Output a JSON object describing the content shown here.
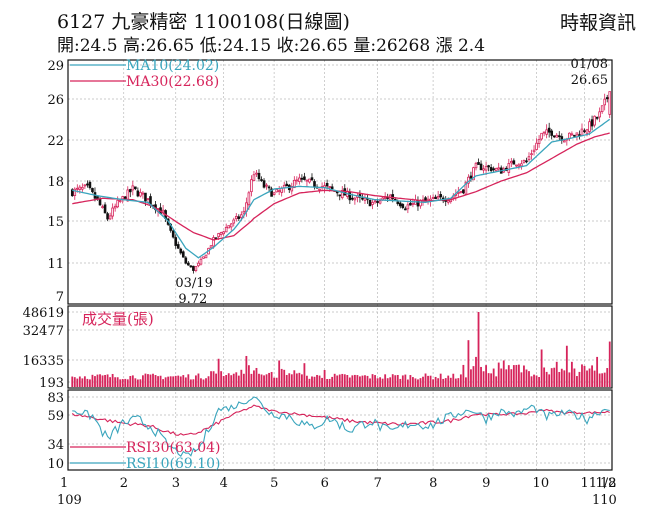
{
  "header": {
    "title": "6127 九豪精密 1100108(日線圖)",
    "ohlc": "開:24.5 高:26.65 低:24.15 收:26.65 量:26268 漲 2.4",
    "brand": "時報資訊"
  },
  "colors": {
    "up": "#d6245b",
    "down": "#111111",
    "ma10": "#3aa5bd",
    "ma30": "#d6245b",
    "volume": "#d6245b",
    "rsi30": "#d6245b",
    "rsi10": "#3aa5bd",
    "grid": "#bbbbbb"
  },
  "chart_data": [
    {
      "type": "candlestick",
      "panel": "price",
      "y_ticks": [
        7,
        11,
        15,
        18,
        22,
        26,
        29
      ],
      "ylim": [
        7,
        29
      ],
      "x_ticks": [
        "1",
        "2",
        "3",
        "4",
        "5",
        "6",
        "7",
        "8",
        "9",
        "10",
        "11",
        "12",
        "1/8"
      ],
      "x_year_labels": [
        "109",
        "110"
      ],
      "legend": [
        {
          "name": "MA10(24.02)",
          "color": "#3aa5bd"
        },
        {
          "name": "MA30(22.68)",
          "color": "#d6245b"
        }
      ],
      "annotations": [
        {
          "date": "01/08",
          "value": "26.65",
          "label": "high"
        },
        {
          "date": "03/19",
          "value": "9.72",
          "label": "low"
        }
      ],
      "close_anchors": [
        [
          0,
          17.2
        ],
        [
          6,
          17.5
        ],
        [
          10,
          16.5
        ],
        [
          14,
          15.2
        ],
        [
          18,
          16.3
        ],
        [
          24,
          17.4
        ],
        [
          30,
          16.6
        ],
        [
          36,
          15.6
        ],
        [
          41,
          12.8
        ],
        [
          45,
          11.0
        ],
        [
          48,
          10.2
        ],
        [
          52,
          11.5
        ],
        [
          56,
          13.2
        ],
        [
          62,
          14.6
        ],
        [
          68,
          15.6
        ],
        [
          72,
          18.8
        ],
        [
          76,
          17.6
        ],
        [
          80,
          17.0
        ],
        [
          84,
          17.4
        ],
        [
          90,
          18.1
        ],
        [
          96,
          17.8
        ],
        [
          102,
          17.4
        ],
        [
          108,
          17.0
        ],
        [
          114,
          16.6
        ],
        [
          120,
          16.3
        ],
        [
          126,
          16.9
        ],
        [
          132,
          16.1
        ],
        [
          138,
          16.4
        ],
        [
          144,
          16.6
        ],
        [
          150,
          16.8
        ],
        [
          155,
          17.4
        ],
        [
          160,
          19.4
        ],
        [
          165,
          19.3
        ],
        [
          170,
          19.0
        ],
        [
          175,
          19.8
        ],
        [
          180,
          19.9
        ],
        [
          186,
          22.5
        ],
        [
          190,
          22.8
        ],
        [
          195,
          22.2
        ],
        [
          200,
          22.6
        ],
        [
          205,
          23.4
        ],
        [
          209,
          24.5
        ],
        [
          213,
          26.65
        ]
      ],
      "ma10_anchors": [
        [
          0,
          17.3
        ],
        [
          10,
          16.9
        ],
        [
          20,
          16.6
        ],
        [
          30,
          16.4
        ],
        [
          38,
          15.0
        ],
        [
          45,
          12.4
        ],
        [
          50,
          11.5
        ],
        [
          56,
          12.5
        ],
        [
          64,
          14.2
        ],
        [
          72,
          16.6
        ],
        [
          80,
          17.4
        ],
        [
          90,
          17.6
        ],
        [
          100,
          17.5
        ],
        [
          110,
          17.0
        ],
        [
          120,
          16.6
        ],
        [
          130,
          16.5
        ],
        [
          140,
          16.4
        ],
        [
          150,
          16.7
        ],
        [
          160,
          18.5
        ],
        [
          170,
          19.0
        ],
        [
          180,
          19.5
        ],
        [
          190,
          21.8
        ],
        [
          200,
          22.3
        ],
        [
          205,
          22.6
        ],
        [
          213,
          24.02
        ]
      ],
      "ma30_anchors": [
        [
          0,
          16.3
        ],
        [
          12,
          16.7
        ],
        [
          24,
          16.6
        ],
        [
          32,
          16.1
        ],
        [
          40,
          15.1
        ],
        [
          48,
          13.9
        ],
        [
          56,
          13.2
        ],
        [
          64,
          13.6
        ],
        [
          72,
          15.2
        ],
        [
          80,
          16.3
        ],
        [
          90,
          17.1
        ],
        [
          100,
          17.3
        ],
        [
          110,
          17.2
        ],
        [
          120,
          16.9
        ],
        [
          130,
          16.7
        ],
        [
          140,
          16.5
        ],
        [
          150,
          16.6
        ],
        [
          160,
          17.2
        ],
        [
          170,
          18.0
        ],
        [
          180,
          18.8
        ],
        [
          190,
          20.2
        ],
        [
          200,
          21.6
        ],
        [
          207,
          22.3
        ],
        [
          213,
          22.68
        ]
      ]
    },
    {
      "type": "bar",
      "panel": "volume",
      "title": "成交量(張)",
      "y_ticks": [
        193,
        16335,
        32477,
        48619
      ],
      "ylim": [
        193,
        48619
      ],
      "spikes": [
        [
          161,
          48619
        ],
        [
          157,
          27000
        ],
        [
          160,
          18000
        ],
        [
          171,
          16000
        ],
        [
          186,
          22000
        ],
        [
          196,
          24000
        ],
        [
          208,
          18000
        ],
        [
          213,
          26268
        ],
        [
          58,
          17000
        ],
        [
          69,
          18500
        ],
        [
          70,
          12500
        ],
        [
          82,
          16000
        ],
        [
          92,
          14000
        ],
        [
          100,
          9000
        ],
        [
          198,
          15000
        ],
        [
          203,
          12000
        ]
      ]
    },
    {
      "type": "line",
      "panel": "rsi",
      "y_ticks": [
        10,
        34,
        59,
        83
      ],
      "ylim": [
        10,
        83
      ],
      "series": [
        {
          "name": "RSI30(63.04)",
          "color": "#d6245b",
          "anchors": [
            [
              0,
              60
            ],
            [
              10,
              56
            ],
            [
              20,
              52
            ],
            [
              30,
              50
            ],
            [
              40,
              43
            ],
            [
              45,
              41
            ],
            [
              50,
              44
            ],
            [
              56,
              50
            ],
            [
              64,
              60
            ],
            [
              72,
              71
            ],
            [
              80,
              64
            ],
            [
              90,
              60
            ],
            [
              100,
              57
            ],
            [
              110,
              54
            ],
            [
              120,
              52
            ],
            [
              130,
              51
            ],
            [
              140,
              52
            ],
            [
              150,
              54
            ],
            [
              160,
              60
            ],
            [
              170,
              60
            ],
            [
              180,
              61
            ],
            [
              186,
              66
            ],
            [
              195,
              62
            ],
            [
              205,
              62
            ],
            [
              213,
              63.04
            ]
          ]
        },
        {
          "name": "RSI10(69.10)",
          "color": "#3aa5bd",
          "anchors": [
            [
              0,
              66
            ],
            [
              8,
              58
            ],
            [
              14,
              38
            ],
            [
              20,
              52
            ],
            [
              26,
              55
            ],
            [
              32,
              48
            ],
            [
              38,
              32
            ],
            [
              45,
              18
            ],
            [
              50,
              28
            ],
            [
              58,
              66
            ],
            [
              64,
              70
            ],
            [
              72,
              84
            ],
            [
              78,
              62
            ],
            [
              86,
              58
            ],
            [
              94,
              48
            ],
            [
              102,
              56
            ],
            [
              110,
              46
            ],
            [
              118,
              54
            ],
            [
              126,
              44
            ],
            [
              134,
              52
            ],
            [
              142,
              50
            ],
            [
              150,
              58
            ],
            [
              158,
              66
            ],
            [
              164,
              56
            ],
            [
              170,
              64
            ],
            [
              176,
              60
            ],
            [
              182,
              70
            ],
            [
              188,
              58
            ],
            [
              196,
              62
            ],
            [
              204,
              56
            ],
            [
              213,
              69.1
            ]
          ]
        }
      ]
    }
  ]
}
